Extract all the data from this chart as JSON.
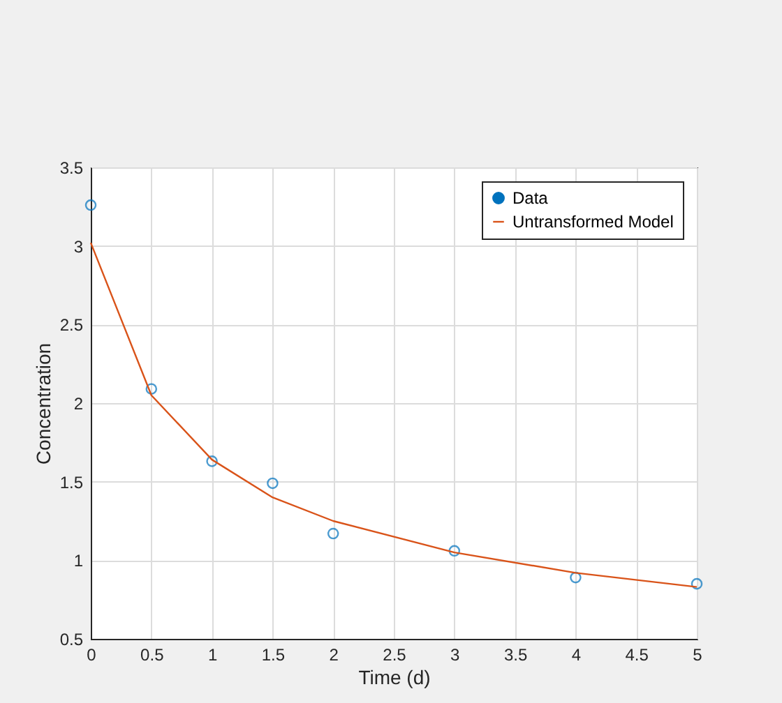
{
  "chart_data": {
    "type": "scatter",
    "xlabel": "Time (d)",
    "ylabel": "Concentration",
    "x": [
      0,
      0.5,
      1,
      1.5,
      2,
      3,
      4,
      5
    ],
    "series": [
      {
        "name": "Data",
        "type": "scatter",
        "marker": "circle",
        "color": "#0072bd",
        "values": [
          3.26,
          2.09,
          1.63,
          1.49,
          1.17,
          1.06,
          0.89,
          0.85
        ]
      },
      {
        "name": "Untransformed Model",
        "type": "line",
        "marker": "none",
        "line_style": "solid",
        "color": "#d95319",
        "values": [
          3.02,
          2.05,
          1.64,
          1.4,
          1.25,
          1.05,
          0.92,
          0.83
        ]
      }
    ],
    "xlim": [
      0,
      5
    ],
    "xticks": [
      0,
      0.5,
      1,
      1.5,
      2,
      2.5,
      3,
      3.5,
      4,
      4.5,
      5
    ],
    "ylim": [
      0.5,
      3.5
    ],
    "yticks": [
      0.5,
      1,
      1.5,
      2,
      2.5,
      3,
      3.5
    ],
    "grid": true,
    "legend": "top right"
  }
}
